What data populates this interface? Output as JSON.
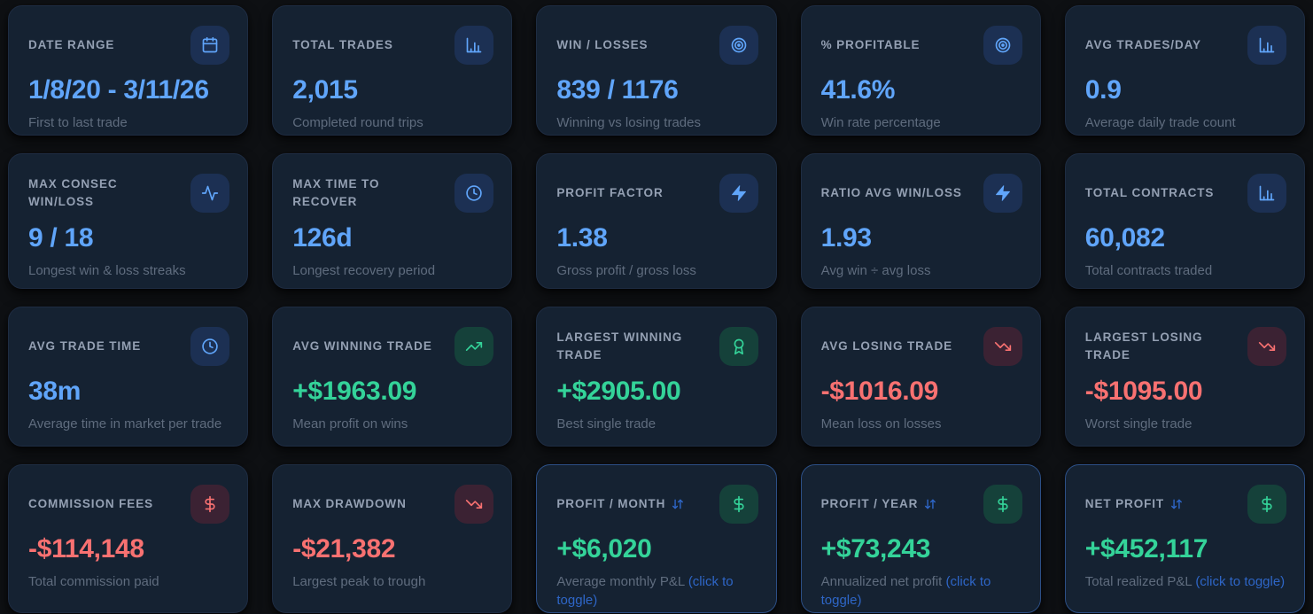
{
  "app": {
    "name": "trading-performance-stats-dashboard",
    "accent_colors": {
      "blue": "#60a5fa",
      "green": "#34d399",
      "red": "#f87171",
      "toggle_link_blue": "#2e66c7",
      "card_background": "#152232",
      "page_background": "#0e1013"
    }
  },
  "cards": [
    {
      "title": "DATE RANGE",
      "icon": "calendar-icon",
      "tone": "blue",
      "value": "1/8/20 - 3/11/26",
      "description": "First to last trade"
    },
    {
      "title": "TOTAL TRADES",
      "icon": "bar-chart-icon",
      "tone": "blue",
      "value": "2,015",
      "description": "Completed round trips"
    },
    {
      "title": "WIN / LOSSES",
      "icon": "target-icon",
      "tone": "blue",
      "value": "839 / 1176",
      "description": "Winning vs losing trades"
    },
    {
      "title": "% PROFITABLE",
      "icon": "target-icon",
      "tone": "blue",
      "value": "41.6%",
      "description": "Win rate percentage"
    },
    {
      "title": "AVG TRADES/DAY",
      "icon": "bar-chart-icon",
      "tone": "blue",
      "value": "0.9",
      "description": "Average daily trade count"
    },
    {
      "title": "MAX CONSEC WIN/LOSS",
      "icon": "activity-icon",
      "tone": "blue",
      "value": "9 / 18",
      "description": "Longest win & loss streaks"
    },
    {
      "title": "MAX TIME TO RECOVER",
      "icon": "clock-icon",
      "tone": "blue",
      "value": "126d",
      "description": "Longest recovery period"
    },
    {
      "title": "PROFIT FACTOR",
      "icon": "zap-icon",
      "tone": "blue",
      "value": "1.38",
      "description": "Gross profit / gross loss"
    },
    {
      "title": "RATIO AVG WIN/LOSS",
      "icon": "zap-icon",
      "tone": "blue",
      "value": "1.93",
      "description": "Avg win ÷ avg loss"
    },
    {
      "title": "TOTAL CONTRACTS",
      "icon": "bar-chart-icon",
      "tone": "blue",
      "value": "60,082",
      "description": "Total contracts traded"
    },
    {
      "title": "AVG TRADE TIME",
      "icon": "clock-icon",
      "tone": "blue",
      "value": "38m",
      "description": "Average time in market per trade"
    },
    {
      "title": "AVG WINNING TRADE",
      "icon": "trending-up-icon",
      "tone": "green",
      "value": "+$1963.09",
      "description": "Mean profit on wins"
    },
    {
      "title": "LARGEST WINNING TRADE",
      "icon": "award-icon",
      "tone": "green",
      "value": "+$2905.00",
      "description": "Best single trade"
    },
    {
      "title": "AVG LOSING TRADE",
      "icon": "trending-down-icon",
      "tone": "red",
      "value": "-$1016.09",
      "description": "Mean loss on losses"
    },
    {
      "title": "LARGEST LOSING TRADE",
      "icon": "trending-down-icon",
      "tone": "red",
      "value": "-$1095.00",
      "description": "Worst single trade"
    },
    {
      "title": "COMMISSION FEES",
      "icon": "dollar-icon",
      "tone": "red",
      "value": "-$114,148",
      "description": "Total commission paid"
    },
    {
      "title": "MAX DRAWDOWN",
      "icon": "trending-down-icon",
      "tone": "red",
      "value": "-$21,382",
      "description": "Largest peak to trough"
    },
    {
      "title": "PROFIT / MONTH",
      "icon": "dollar-icon",
      "tone": "green",
      "value": "+$6,020",
      "description": "Average monthly P&L",
      "toggleable": true,
      "title_suffix_icon": "arrows-up-down-icon",
      "link_text": "(click to toggle)"
    },
    {
      "title": "PROFIT / YEAR",
      "icon": "dollar-icon",
      "tone": "green",
      "value": "+$73,243",
      "description": "Annualized net profit",
      "toggleable": true,
      "title_suffix_icon": "arrows-up-down-icon",
      "link_text": "(click to toggle)"
    },
    {
      "title": "NET PROFIT",
      "icon": "dollar-icon",
      "tone": "green",
      "value": "+$452,117",
      "description": "Total realized P&L",
      "toggleable": true,
      "title_suffix_icon": "arrows-up-down-icon",
      "link_text": "(click to toggle)"
    }
  ]
}
